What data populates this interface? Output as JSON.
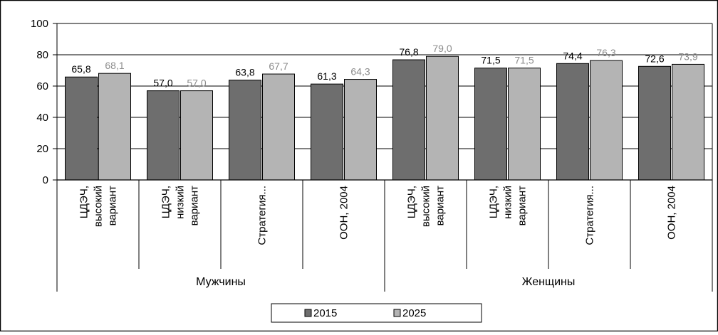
{
  "chart_data": {
    "type": "bar",
    "title": "",
    "xlabel": "",
    "ylabel": "",
    "ylim": [
      0,
      100
    ],
    "yticks": [
      0,
      20,
      40,
      60,
      80,
      100
    ],
    "grid": true,
    "legend_position": "bottom",
    "groups": [
      {
        "label": "Мужчины",
        "categories": [
          "ЦДЭЧ, высокий вариант",
          "ЦДЭЧ, низкий вариант",
          "Стратегия...",
          "ООН, 2004"
        ]
      },
      {
        "label": "Женщины",
        "categories": [
          "ЦДЭЧ, высокий вариант",
          "ЦДЭЧ, низкий вариант",
          "Стратегия...",
          "ООН, 2004"
        ]
      }
    ],
    "category_lines": [
      [
        "ЦДЭЧ,",
        "высокий",
        "вариант"
      ],
      [
        "ЦДЭЧ,",
        "низкий",
        "вариант"
      ],
      [
        "Стратегия..."
      ],
      [
        "ООН, 2004"
      ],
      [
        "ЦДЭЧ,",
        "высокий",
        "вариант"
      ],
      [
        "ЦДЭЧ,",
        "низкий",
        "вариант"
      ],
      [
        "Стратегия..."
      ],
      [
        "ООН, 2004"
      ]
    ],
    "series": [
      {
        "name": "2015",
        "color": "#6e6e6e",
        "values": [
          65.8,
          57.0,
          63.8,
          61.3,
          76.8,
          71.5,
          74.4,
          72.6
        ],
        "labels": [
          "65,8",
          "57,0",
          "63,8",
          "61,3",
          "76,8",
          "71,5",
          "74,4",
          "72,6"
        ]
      },
      {
        "name": "2025",
        "color": "#b4b4b4",
        "values": [
          68.1,
          57.0,
          67.7,
          64.3,
          79.0,
          71.5,
          76.3,
          73.9
        ],
        "labels": [
          "68,1",
          "57,0",
          "67,7",
          "64,3",
          "79,0",
          "71,5",
          "76,3",
          "73,9"
        ]
      }
    ]
  }
}
